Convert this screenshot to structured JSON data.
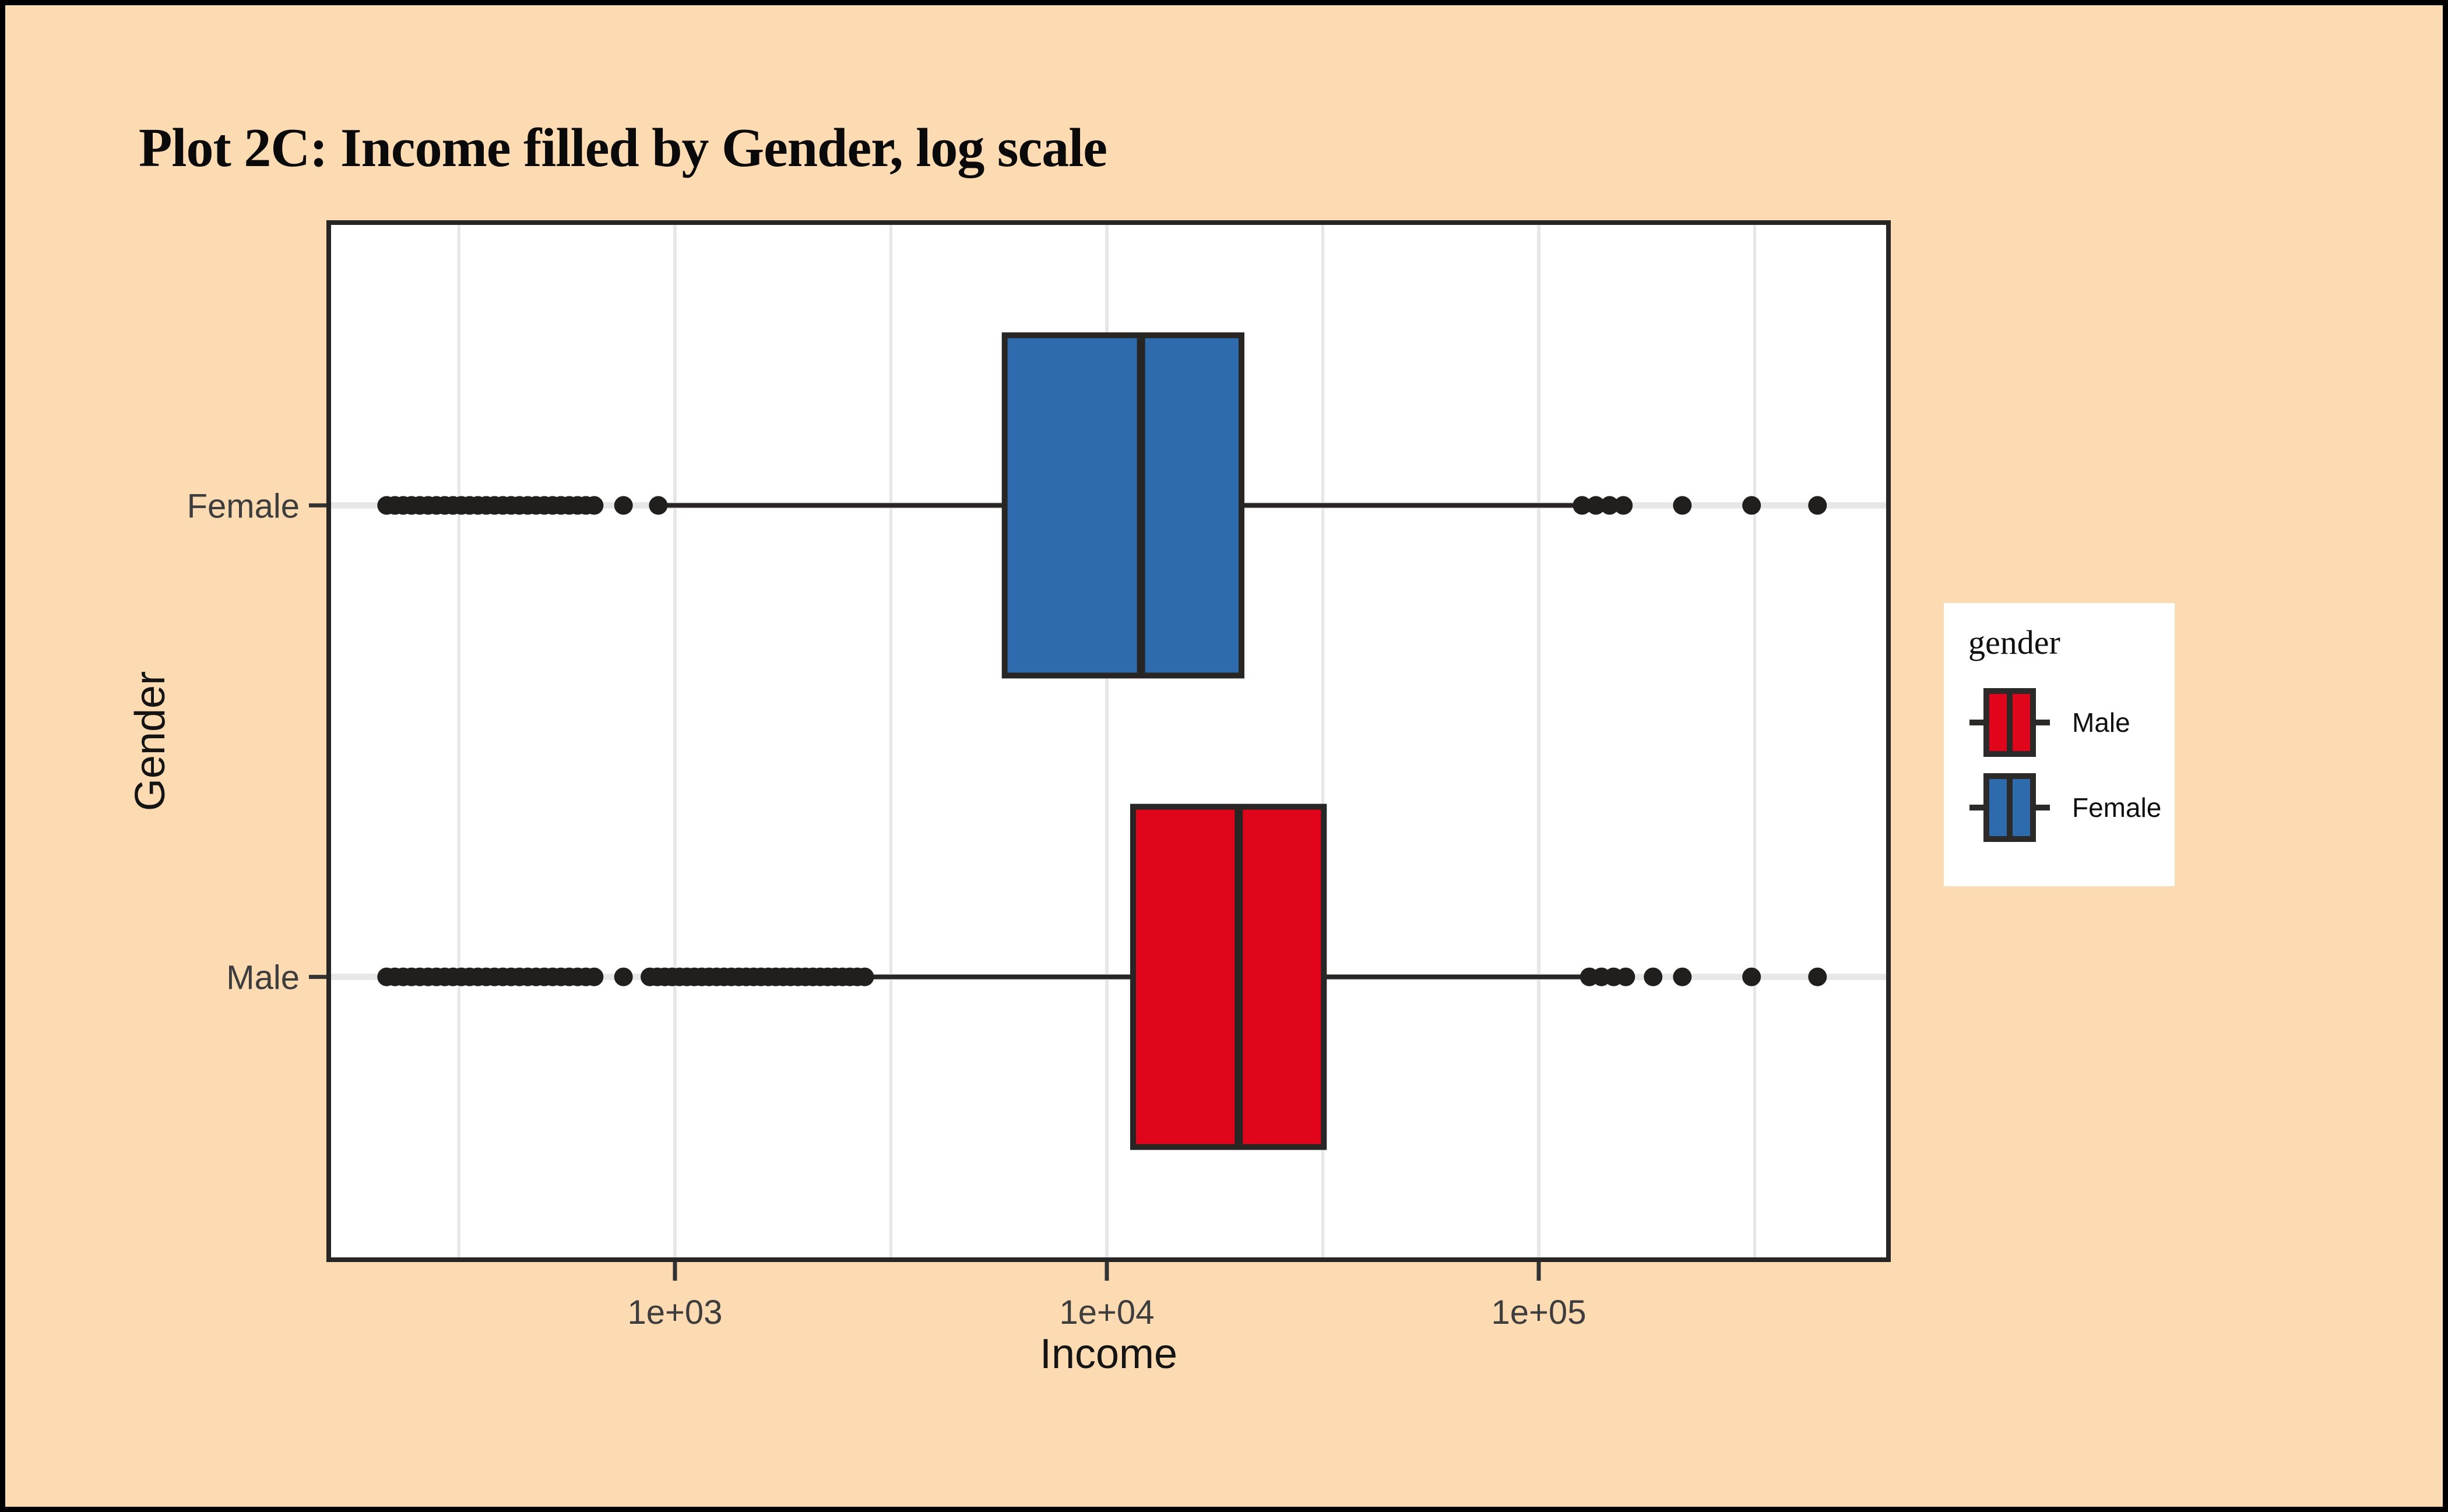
{
  "window": {
    "background": "#FCDBB2",
    "frame_color": "#000000",
    "panel_background": "#FFFFFF"
  },
  "title": "Plot 2C: Income filled by Gender, log scale",
  "legend": {
    "title": "gender",
    "keys": [
      {
        "label": "Male",
        "color": "#E0051A"
      },
      {
        "label": "Female",
        "color": "#2D6BAC"
      }
    ]
  },
  "chart_data": {
    "type": "boxplot",
    "orientation": "horizontal",
    "title": "Plot 2C: Income filled by Gender, log scale",
    "xlabel": "Income",
    "ylabel": "Gender",
    "x_scale": "log10",
    "xlim": [
      158,
      646000
    ],
    "x_ticks": [
      {
        "label": "1e+03",
        "value": 1000
      },
      {
        "label": "1e+04",
        "value": 10000
      },
      {
        "label": "1e+05",
        "value": 100000
      }
    ],
    "x_minor_gridlines": [
      316,
      3162,
      31623,
      316228
    ],
    "y_categories": [
      "Female",
      "Male"
    ],
    "grid": true,
    "legend_position": "right",
    "ink_color": "#272624",
    "grid_color": "#E7E7E7",
    "series": [
      {
        "label": "Female",
        "fill": "#2D6BAC",
        "q1": 5800,
        "median": 12000,
        "q3": 20500,
        "whisker_low": 950,
        "whisker_high": 120000,
        "outliers_low": {
          "clusters": [
            [
              215,
              650,
              26
            ]
          ],
          "points": [
            760,
            915
          ]
        },
        "outliers_high": {
          "clusters": [
            [
              126000,
              157000,
              4
            ]
          ],
          "points": [
            215000,
            311000,
            442000
          ]
        }
      },
      {
        "label": "Male",
        "fill": "#E0051A",
        "q1": 11500,
        "median": 20200,
        "q3": 31800,
        "whisker_low": 2750,
        "whisker_high": 131000,
        "outliers_low": {
          "clusters": [
            [
              215,
              650,
              26
            ],
            [
              875,
              2750,
              30
            ]
          ],
          "points": [
            760
          ]
        },
        "outliers_high": {
          "clusters": [
            [
              131000,
              159000,
              4
            ]
          ],
          "points": [
            184000,
            215000,
            311000,
            442000
          ]
        }
      }
    ]
  }
}
